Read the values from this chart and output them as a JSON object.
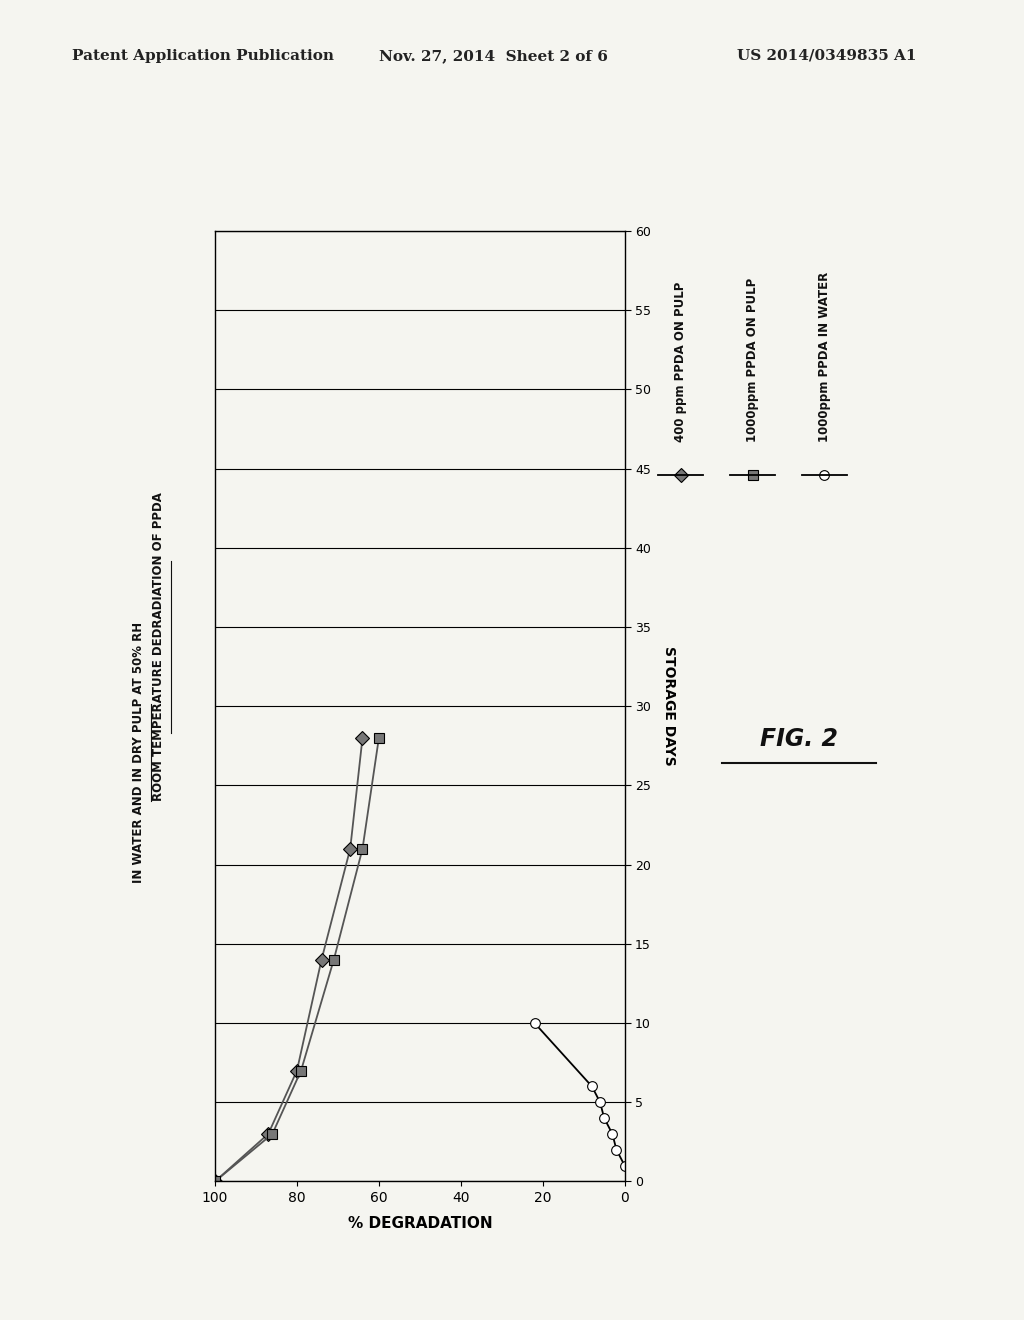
{
  "header_left": "Patent Application Publication",
  "header_center": "Nov. 27, 2014  Sheet 2 of 6",
  "header_right": "US 2014/0349835 A1",
  "title_line1": "ROOM TEMPERATURE DEDRADIATION OF PPDA",
  "title_line2": "IN WATER AND IN DRY PULP AT 50% RH",
  "xlabel": "% DEGRADATION",
  "ylabel": "STORAGE DAYS",
  "fig_label": "FIG. 2",
  "xlim": [
    0,
    100
  ],
  "ylim": [
    0,
    60
  ],
  "xticks": [
    0,
    20,
    40,
    60,
    80,
    100
  ],
  "yticks": [
    0,
    5,
    10,
    15,
    20,
    25,
    30,
    35,
    40,
    45,
    50,
    55,
    60
  ],
  "series": [
    {
      "label": "400 ppm PPDA ON PULP",
      "pct": [
        100,
        87,
        80,
        74,
        67,
        64
      ],
      "days": [
        0,
        3,
        7,
        14,
        21,
        28
      ],
      "color": "#555555",
      "marker": "D",
      "markersize": 7,
      "markerfacecolor": "#777777"
    },
    {
      "label": "1000ppm PPDA ON PULP",
      "pct": [
        100,
        86,
        79,
        71,
        64,
        60
      ],
      "days": [
        0,
        3,
        7,
        14,
        21,
        28
      ],
      "color": "#555555",
      "marker": "s",
      "markersize": 7,
      "markerfacecolor": "#777777"
    },
    {
      "label": "1000ppm PPDA IN WATER",
      "pct": [
        0,
        2,
        3,
        5,
        6,
        8,
        22
      ],
      "days": [
        1,
        2,
        3,
        4,
        5,
        6,
        10
      ],
      "color": "#000000",
      "marker": "o",
      "markersize": 7,
      "markerfacecolor": "white"
    }
  ],
  "legend_items": [
    {
      "label": "400 ppm PPDA ON PULP",
      "marker": "D",
      "fc": "#777777"
    },
    {
      "label": "1000ppm PPDA ON PULP",
      "marker": "s",
      "fc": "#777777"
    },
    {
      "label": "1000ppm PPDA IN WATER",
      "marker": "o",
      "fc": "white"
    }
  ],
  "background_color": "#f5f5f0",
  "plot_bg": "#f5f5f0"
}
